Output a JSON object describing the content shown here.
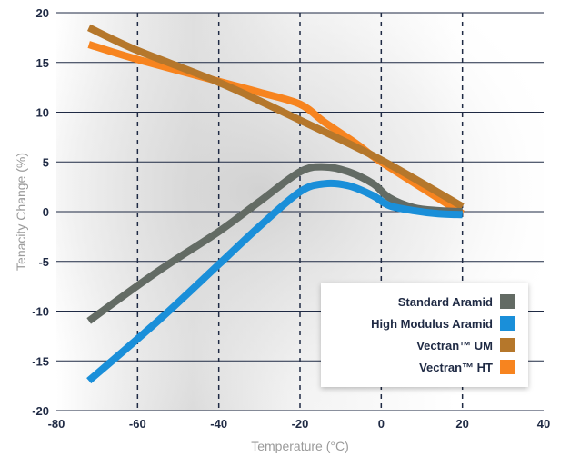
{
  "chart_data": {
    "type": "line",
    "title": "",
    "xlabel": "Temperature (°C)",
    "ylabel": "Tenacity Change (%)",
    "xlim": [
      -80,
      40
    ],
    "ylim": [
      -20,
      20
    ],
    "x_ticks": [
      -80,
      -60,
      -40,
      -20,
      0,
      20,
      40
    ],
    "y_ticks": [
      20,
      15,
      10,
      5,
      0,
      -5,
      -10,
      -15,
      -20
    ],
    "grid": {
      "horizontal": true,
      "vertical_dashed": true
    },
    "legend_position": "bottom-right",
    "series": [
      {
        "name": "Standard Aramid",
        "color": "#636b64",
        "points": [
          [
            -72,
            -11
          ],
          [
            -55,
            -6
          ],
          [
            -40,
            -2
          ],
          [
            -30,
            1
          ],
          [
            -20,
            4
          ],
          [
            -14,
            4.5
          ],
          [
            -8,
            4
          ],
          [
            -2,
            2.8
          ],
          [
            2,
            1.4
          ],
          [
            8,
            0.4
          ],
          [
            14,
            0.1
          ],
          [
            20,
            0
          ]
        ]
      },
      {
        "name": "High Modulus Aramid",
        "color": "#1a8fd9",
        "points": [
          [
            -72,
            -17
          ],
          [
            -55,
            -11
          ],
          [
            -40,
            -5.3
          ],
          [
            -30,
            -1.5
          ],
          [
            -20,
            2
          ],
          [
            -14,
            2.8
          ],
          [
            -8,
            2.6
          ],
          [
            -2,
            1.6
          ],
          [
            2,
            0.6
          ],
          [
            8,
            0.1
          ],
          [
            14,
            -0.2
          ],
          [
            20,
            -0.3
          ]
        ]
      },
      {
        "name": "Vectran™ UM",
        "color": "#b5772b",
        "points": [
          [
            -72,
            18.5
          ],
          [
            -60,
            16.2
          ],
          [
            -40,
            13
          ],
          [
            -20,
            9.2
          ],
          [
            0,
            5.2
          ],
          [
            20,
            0.5
          ]
        ]
      },
      {
        "name": "Vectran™ HT",
        "color": "#f7841f",
        "points": [
          [
            -72,
            16.8
          ],
          [
            -60,
            15.3
          ],
          [
            -40,
            13.1
          ],
          [
            -30,
            12
          ],
          [
            -20,
            10.8
          ],
          [
            -14,
            9
          ],
          [
            -6,
            6.8
          ],
          [
            0,
            5
          ],
          [
            20,
            -0.2
          ]
        ]
      }
    ]
  }
}
